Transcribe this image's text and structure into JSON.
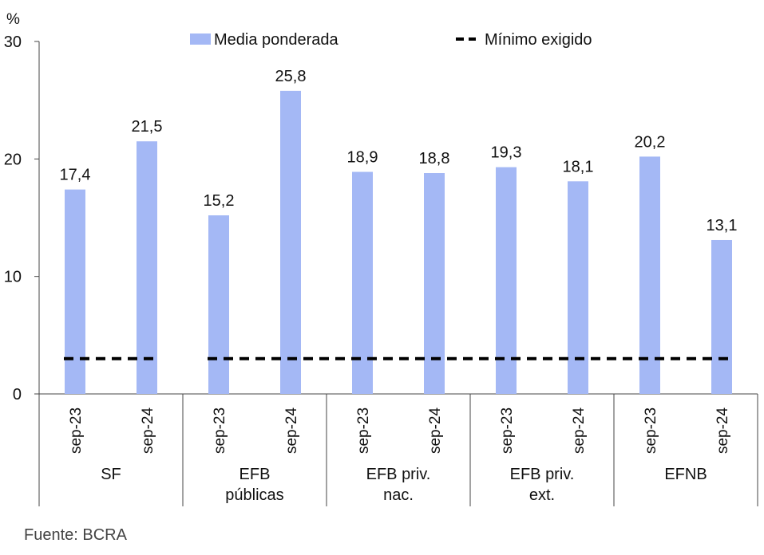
{
  "chart_data": {
    "type": "bar",
    "unit_label": "%",
    "ylim": [
      0,
      30
    ],
    "yticks": [
      "0",
      "10",
      "20",
      "30"
    ],
    "groups": [
      {
        "label": "SF",
        "bars": [
          {
            "period": "sep-23",
            "value": 17.4,
            "value_label": "17,4"
          },
          {
            "period": "sep-24",
            "value": 21.5,
            "value_label": "21,5"
          }
        ]
      },
      {
        "label": "EFB\npúblicas",
        "bars": [
          {
            "period": "sep-23",
            "value": 15.2,
            "value_label": "15,2"
          },
          {
            "period": "sep-24",
            "value": 25.8,
            "value_label": "25,8"
          }
        ]
      },
      {
        "label": "EFB priv.\nnac.",
        "bars": [
          {
            "period": "sep-23",
            "value": 18.9,
            "value_label": "18,9"
          },
          {
            "period": "sep-24",
            "value": 18.8,
            "value_label": "18,8"
          }
        ]
      },
      {
        "label": "EFB priv.\next.",
        "bars": [
          {
            "period": "sep-23",
            "value": 19.3,
            "value_label": "19,3"
          },
          {
            "period": "sep-24",
            "value": 18.1,
            "value_label": "18,1"
          }
        ]
      },
      {
        "label": "EFNB",
        "bars": [
          {
            "period": "sep-23",
            "value": 20.2,
            "value_label": "20,2"
          },
          {
            "period": "sep-24",
            "value": 13.1,
            "value_label": "13,1"
          }
        ]
      }
    ],
    "series": [
      {
        "name": "Media ponderada",
        "kind": "bar",
        "color": "#a4b8f5"
      },
      {
        "name": "Mínimo exigido",
        "kind": "dashed-line",
        "color": "#000000",
        "value": 3.0
      }
    ],
    "legend_position": "top",
    "grid": false
  },
  "source": "Fuente: BCRA"
}
